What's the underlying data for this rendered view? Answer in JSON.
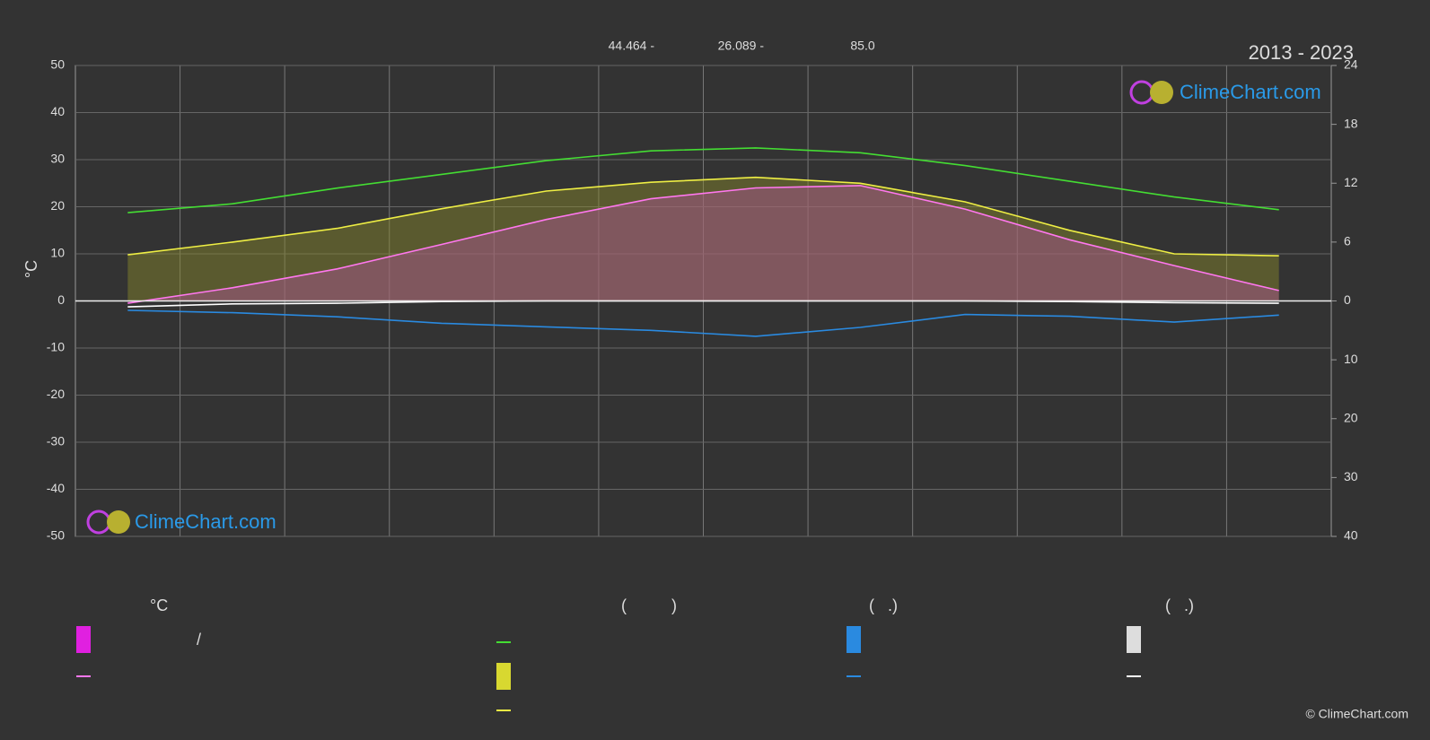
{
  "chart_data": {
    "type": "line",
    "title": "2013 - 2023",
    "annotations": [
      "44.464 -",
      "26.089 -",
      "85.0"
    ],
    "ylabel": "°C",
    "watermark": "ClimeChart.com",
    "copyright": "© ClimeChart.com",
    "legend_headings": [
      "°C",
      "(          )",
      "(   .)",
      "(   .)"
    ],
    "legend_note": "/",
    "categories": [
      null,
      null,
      null,
      null,
      null,
      null,
      null,
      null,
      null,
      null,
      null,
      null
    ],
    "ylim": [
      -50,
      50
    ],
    "yticks": [
      50,
      40,
      30,
      20,
      10,
      0,
      -10,
      -20,
      -30,
      -40,
      -50
    ],
    "y2lim": [
      0,
      24
    ],
    "y2ticks": [
      24,
      18,
      12,
      6,
      0
    ],
    "y3lim": [
      0,
      40
    ],
    "y3ticks": [
      10,
      20,
      30,
      40
    ],
    "grid": true,
    "series": [
      {
        "color": "#44dd33",
        "axis": "y2",
        "values": [
          9.0,
          9.9,
          11.5,
          12.9,
          14.3,
          15.3,
          15.6,
          15.1,
          13.8,
          12.2,
          10.6,
          9.3
        ]
      },
      {
        "color": "#eeee44",
        "axis": "y2",
        "fill": "#8a8a2a",
        "values": [
          4.7,
          6.0,
          7.4,
          9.4,
          11.2,
          12.1,
          12.6,
          12.0,
          10.1,
          7.2,
          4.8,
          4.6
        ]
      },
      {
        "color": "#ff77ee",
        "axis": "y",
        "fill": "#b0559a",
        "values": [
          -0.5,
          2.8,
          6.8,
          12.0,
          17.3,
          21.7,
          24.0,
          24.5,
          19.5,
          13.0,
          7.5,
          2.2
        ]
      },
      {
        "color": "#2a8ae0",
        "axis": "y3",
        "values": [
          1.6,
          2.0,
          2.7,
          3.8,
          4.4,
          5.0,
          6.0,
          4.5,
          2.3,
          2.6,
          3.6,
          2.4
        ]
      },
      {
        "color": "#ffffff",
        "axis": "y3",
        "values": [
          1.0,
          0.5,
          0.4,
          0.1,
          0.0,
          0.0,
          0.0,
          0.0,
          0.0,
          0.1,
          0.3,
          0.4
        ]
      }
    ]
  }
}
